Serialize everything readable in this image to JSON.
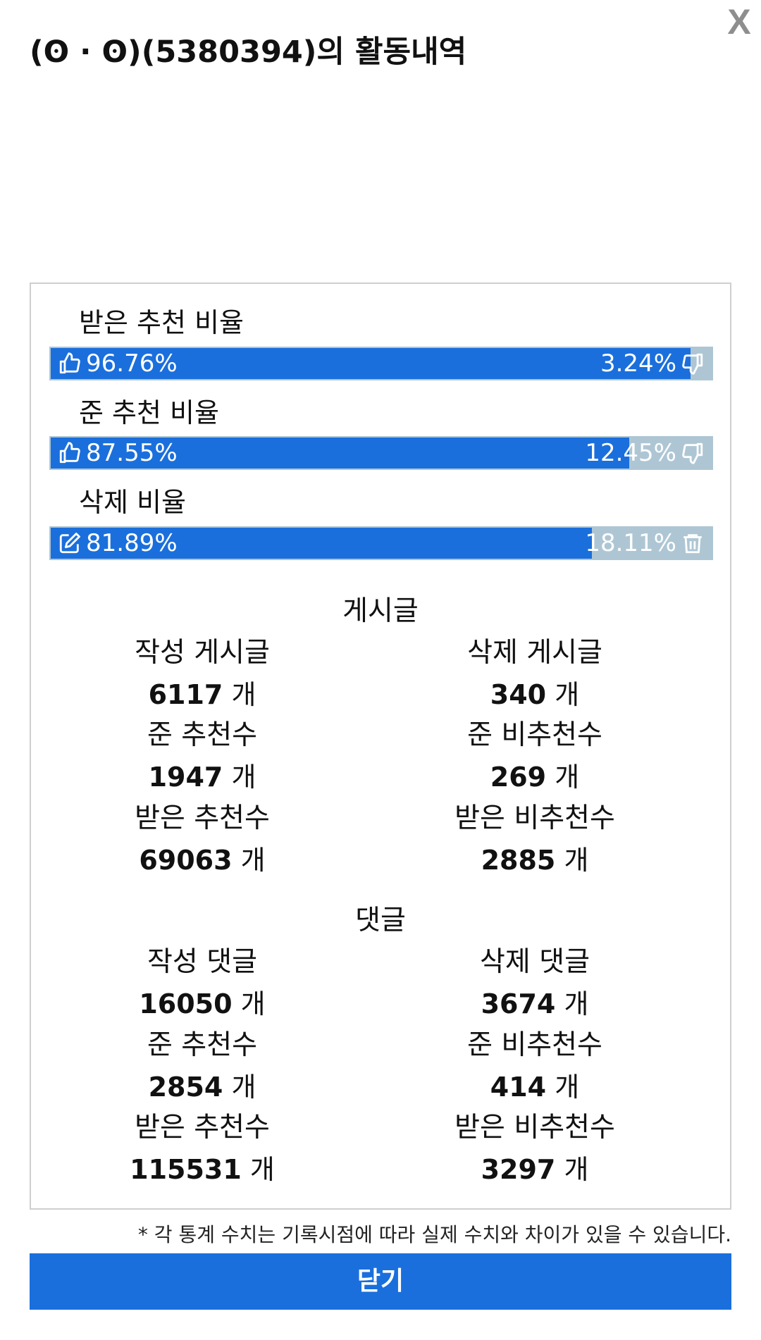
{
  "dialog": {
    "title": "(ʘ · ʘ)(5380394)의 활동내역",
    "close_icon_label": "X",
    "close_button_label": "닫기",
    "note": "* 각 통계 수치는 기록시점에 따라 실제 수치와 차이가 있을 수 있습니다."
  },
  "ratios": [
    {
      "label": "받은 추천 비율",
      "left_value": "96.76%",
      "right_value": "3.24%",
      "fill_fraction": 0.9676,
      "left_icon": "thumbs-up-icon",
      "right_icon": "thumbs-down-icon"
    },
    {
      "label": "준 추천 비율",
      "left_value": "87.55%",
      "right_value": "12.45%",
      "fill_fraction": 0.8755,
      "left_icon": "thumbs-up-icon",
      "right_icon": "thumbs-down-icon"
    },
    {
      "label": "삭제 비율",
      "left_value": "81.89%",
      "right_value": "18.11%",
      "fill_fraction": 0.8189,
      "left_icon": "edit-icon",
      "right_icon": "trash-icon"
    }
  ],
  "posts": {
    "title": "게시글",
    "stats": [
      {
        "left_label": "작성 게시글",
        "left_value": "6117",
        "right_label": "삭제 게시글",
        "right_value": "340"
      },
      {
        "left_label": "준 추천수",
        "left_value": "1947",
        "right_label": "준 비추천수",
        "right_value": "269"
      },
      {
        "left_label": "받은 추천수",
        "left_value": "69063",
        "right_label": "받은 비추천수",
        "right_value": "2885"
      }
    ]
  },
  "comments": {
    "title": "댓글",
    "stats": [
      {
        "left_label": "작성 댓글",
        "left_value": "16050",
        "right_label": "삭제 댓글",
        "right_value": "3674"
      },
      {
        "left_label": "준 추천수",
        "left_value": "2854",
        "right_label": "준 비추천수",
        "right_value": "414"
      },
      {
        "left_label": "받은 추천수",
        "left_value": "115531",
        "right_label": "받은 비추천수",
        "right_value": "3297"
      }
    ]
  },
  "unit": "개",
  "colors": {
    "accent": "#1a6fdc",
    "bar_rest": "#aec6d4",
    "border": "#cfcfcf"
  }
}
